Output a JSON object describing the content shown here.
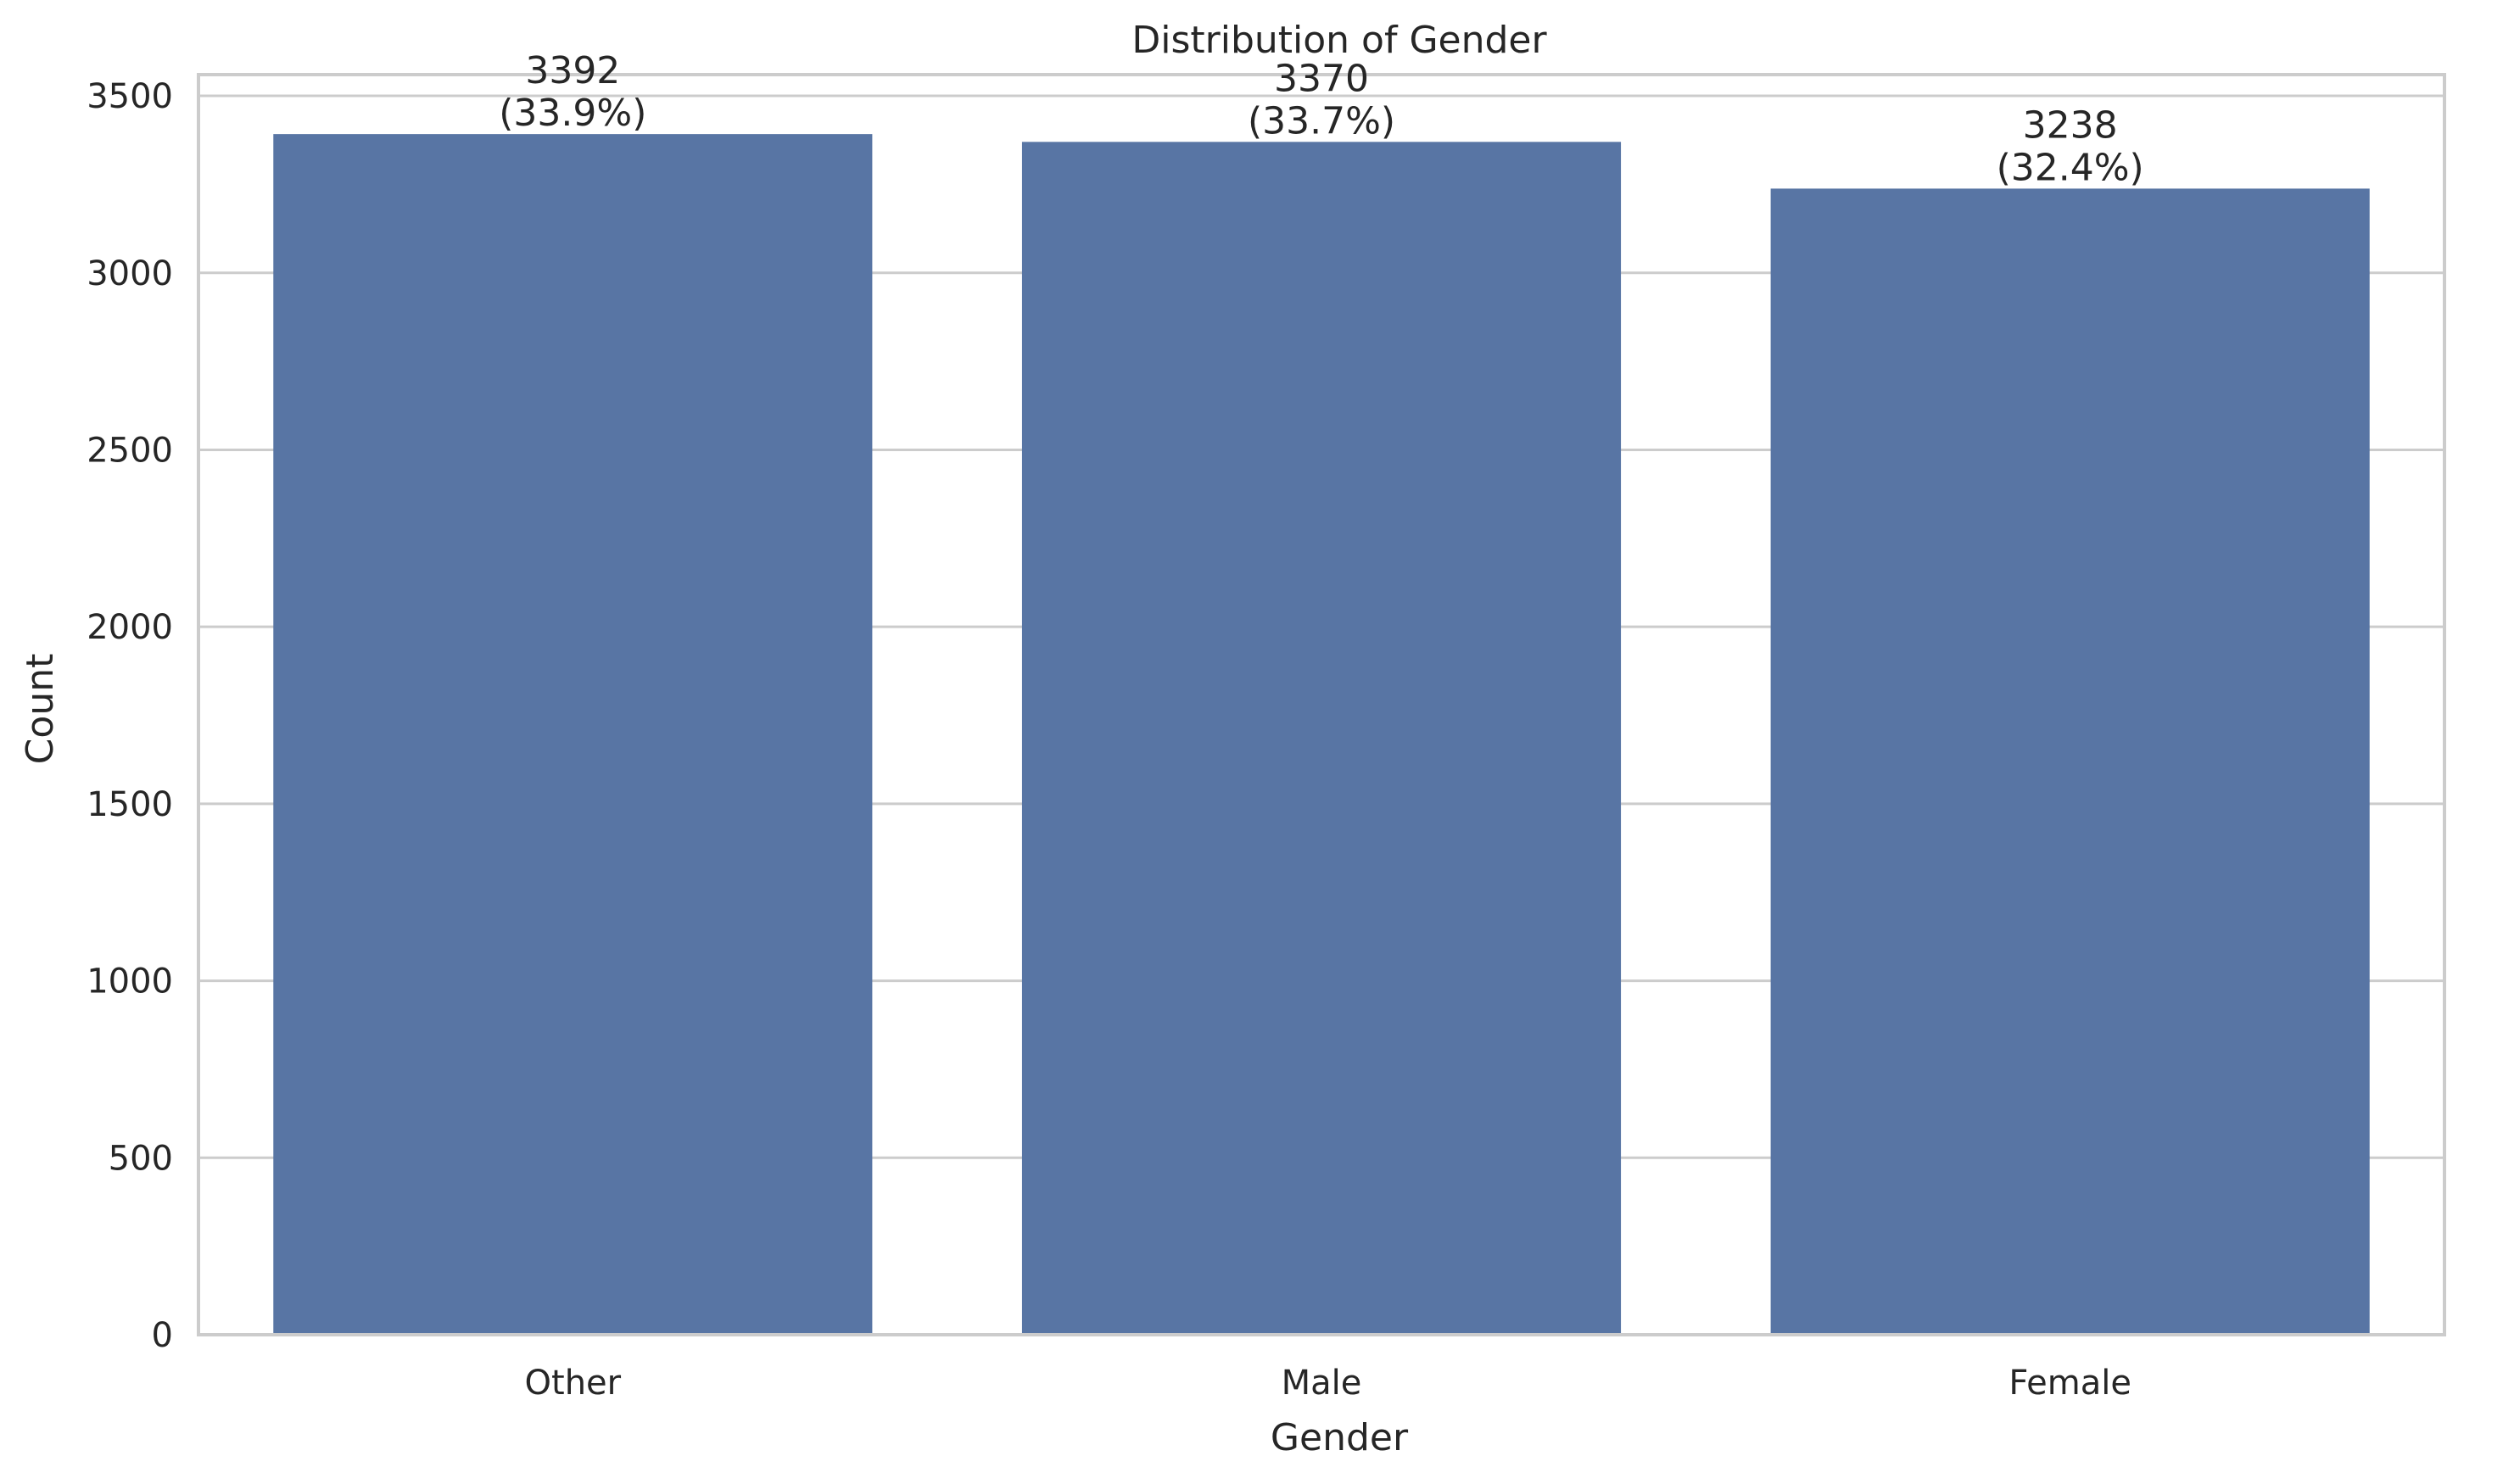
{
  "chart_data": {
    "type": "bar",
    "title": "Distribution of Gender",
    "xlabel": "Gender",
    "ylabel": "Count",
    "categories": [
      "Other",
      "Male",
      "Female"
    ],
    "values": [
      3392,
      3370,
      3238
    ],
    "value_labels": [
      "3392",
      "3370",
      "3238"
    ],
    "percent_labels": [
      "(33.9%)",
      "(33.7%)",
      "(32.4%)"
    ],
    "ylim": [
      0,
      3560
    ],
    "yticks": [
      0,
      500,
      1000,
      1500,
      2000,
      2500,
      3000,
      3500
    ],
    "ytick_labels": [
      "0",
      "500",
      "1000",
      "1500",
      "2000",
      "2500",
      "3000",
      "3500"
    ],
    "grid": true,
    "bar_color": "#5875a4",
    "grid_color": "#cccccc",
    "text_color": "#262626"
  }
}
